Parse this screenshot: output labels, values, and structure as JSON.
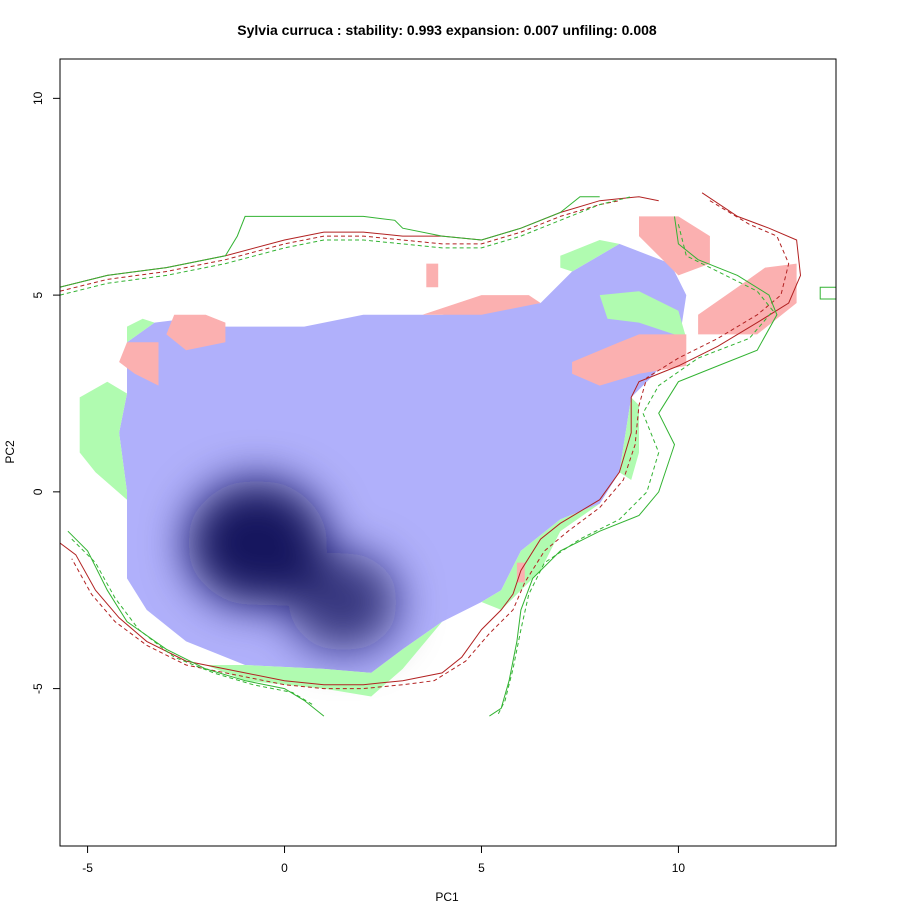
{
  "chart_data": {
    "type": "heatmap",
    "title": "Sylvia curruca : stability: 0.993 expansion: 0.007 unfiling: 0.008",
    "xlabel": "PC1",
    "ylabel": "PC2",
    "xlim": [
      -5.7,
      14.0
    ],
    "ylim": [
      -9.0,
      11.0
    ],
    "x_ticks": [
      -5,
      0,
      5,
      10
    ],
    "y_ticks": [
      -5,
      0,
      5,
      10
    ],
    "stability": 0.993,
    "expansion": 0.007,
    "unfilling": 0.008,
    "layers": [
      {
        "category": "stability",
        "color": "#b0b0fb"
      },
      {
        "category": "unfilling",
        "color": "#b0fbb0"
      },
      {
        "category": "expansion",
        "color": "#fbb0b0"
      }
    ],
    "density_peaks": [
      {
        "pc1": -0.7,
        "pc2": -1.3,
        "weight": 1.0
      },
      {
        "pc1": 1.5,
        "pc2": -2.8,
        "weight": 0.5
      }
    ],
    "stability_polygon": [
      [
        -4.0,
        2.5
      ],
      [
        -4.0,
        3.8
      ],
      [
        -3.3,
        4.3
      ],
      [
        -2.5,
        4.4
      ],
      [
        -1.5,
        4.2
      ],
      [
        0.5,
        4.2
      ],
      [
        2.0,
        4.5
      ],
      [
        4.0,
        4.5
      ],
      [
        6.5,
        4.8
      ],
      [
        7.3,
        5.6
      ],
      [
        8.5,
        6.3
      ],
      [
        9.8,
        5.8
      ],
      [
        10.2,
        5.0
      ],
      [
        10.0,
        3.7
      ],
      [
        9.3,
        2.9
      ],
      [
        8.8,
        2.4
      ],
      [
        8.5,
        0.5
      ],
      [
        8.0,
        -0.3
      ],
      [
        7.0,
        -0.7
      ],
      [
        6.0,
        -1.5
      ],
      [
        5.5,
        -2.5
      ],
      [
        5.0,
        -2.8
      ],
      [
        4.0,
        -3.3
      ],
      [
        3.0,
        -4.0
      ],
      [
        2.2,
        -4.6
      ],
      [
        1.0,
        -4.5
      ],
      [
        -1.0,
        -4.4
      ],
      [
        -2.5,
        -3.8
      ],
      [
        -3.5,
        -3.0
      ],
      [
        -4.0,
        -2.2
      ],
      [
        -4.0,
        0.0
      ],
      [
        -4.2,
        1.5
      ],
      [
        -4.0,
        2.5
      ]
    ],
    "expansion_polygons": [
      [
        [
          -4.2,
          3.3
        ],
        [
          -3.8,
          3.0
        ],
        [
          -3.2,
          2.7
        ],
        [
          -3.2,
          3.8
        ],
        [
          -4.0,
          3.8
        ]
      ],
      [
        [
          -2.8,
          4.5
        ],
        [
          -2.0,
          4.5
        ],
        [
          -1.5,
          4.3
        ],
        [
          -1.5,
          3.8
        ],
        [
          -2.5,
          3.6
        ],
        [
          -3.0,
          4.0
        ]
      ],
      [
        [
          3.6,
          5.8
        ],
        [
          3.9,
          5.8
        ],
        [
          3.9,
          5.2
        ],
        [
          3.6,
          5.2
        ]
      ],
      [
        [
          3.5,
          4.5
        ],
        [
          5.0,
          5.0
        ],
        [
          6.2,
          5.0
        ],
        [
          6.5,
          4.8
        ],
        [
          5.0,
          4.5
        ]
      ],
      [
        [
          7.3,
          3.3
        ],
        [
          8.5,
          3.8
        ],
        [
          9.0,
          4.0
        ],
        [
          10.2,
          4.0
        ],
        [
          10.2,
          3.2
        ],
        [
          9.0,
          3.0
        ],
        [
          8.0,
          2.7
        ],
        [
          7.3,
          3.0
        ]
      ],
      [
        [
          9.0,
          7.0
        ],
        [
          10.0,
          7.0
        ],
        [
          10.8,
          6.5
        ],
        [
          10.8,
          5.8
        ],
        [
          10.0,
          5.5
        ],
        [
          9.5,
          6.0
        ],
        [
          9.0,
          6.5
        ]
      ],
      [
        [
          10.5,
          4.5
        ],
        [
          11.5,
          5.2
        ],
        [
          12.2,
          5.7
        ],
        [
          13.0,
          5.8
        ],
        [
          13.0,
          4.8
        ],
        [
          12.0,
          4.0
        ],
        [
          10.5,
          4.0
        ]
      ],
      [
        [
          5.9,
          -2.3
        ],
        [
          6.1,
          -2.3
        ],
        [
          6.1,
          -1.8
        ],
        [
          5.9,
          -1.8
        ]
      ]
    ],
    "unfilling_polygons": [
      [
        [
          -5.2,
          2.4
        ],
        [
          -4.5,
          2.8
        ],
        [
          -4.0,
          2.5
        ],
        [
          -4.2,
          1.5
        ],
        [
          -4.0,
          0.0
        ],
        [
          -4.0,
          -0.2
        ],
        [
          -4.8,
          0.5
        ],
        [
          -5.2,
          1.0
        ]
      ],
      [
        [
          -4.0,
          4.2
        ],
        [
          -3.6,
          4.4
        ],
        [
          -3.3,
          4.3
        ],
        [
          -4.0,
          3.8
        ]
      ],
      [
        [
          -2.0,
          -4.4
        ],
        [
          -1.0,
          -4.8
        ],
        [
          1.0,
          -5.0
        ],
        [
          2.2,
          -5.2
        ],
        [
          3.0,
          -4.5
        ],
        [
          4.0,
          -3.3
        ],
        [
          3.0,
          -4.0
        ],
        [
          2.2,
          -4.6
        ],
        [
          1.0,
          -4.5
        ],
        [
          -1.0,
          -4.4
        ]
      ],
      [
        [
          7.0,
          6.0
        ],
        [
          8.0,
          6.4
        ],
        [
          8.5,
          6.3
        ],
        [
          7.3,
          5.6
        ],
        [
          7.0,
          5.7
        ]
      ],
      [
        [
          8.0,
          5.0
        ],
        [
          9.0,
          5.1
        ],
        [
          10.0,
          4.6
        ],
        [
          10.2,
          3.9
        ],
        [
          9.0,
          4.3
        ],
        [
          8.2,
          4.4
        ]
      ],
      [
        [
          8.7,
          2.5
        ],
        [
          9.0,
          2.2
        ],
        [
          9.0,
          1.0
        ],
        [
          8.8,
          0.3
        ],
        [
          8.5,
          0.5
        ],
        [
          8.8,
          2.4
        ]
      ],
      [
        [
          5.0,
          -2.8
        ],
        [
          5.5,
          -3.0
        ],
        [
          6.5,
          -2.0
        ],
        [
          7.0,
          -1.0
        ],
        [
          8.0,
          -0.3
        ],
        [
          7.0,
          -0.7
        ],
        [
          6.0,
          -1.5
        ],
        [
          5.5,
          -2.5
        ]
      ]
    ],
    "contours": [
      {
        "color": "#b22222",
        "dash": "solid",
        "points": [
          [
            -5.7,
            5.2
          ],
          [
            -4.5,
            5.5
          ],
          [
            -3.0,
            5.7
          ],
          [
            -1.5,
            6.0
          ],
          [
            0.0,
            6.4
          ],
          [
            1.0,
            6.6
          ],
          [
            2.0,
            6.6
          ],
          [
            3.0,
            6.5
          ],
          [
            4.0,
            6.5
          ],
          [
            5.0,
            6.4
          ],
          [
            6.0,
            6.7
          ],
          [
            7.0,
            7.1
          ],
          [
            8.0,
            7.4
          ],
          [
            9.0,
            7.5
          ],
          [
            9.5,
            7.4
          ]
        ]
      },
      {
        "color": "#b22222",
        "dash": "dashed",
        "points": [
          [
            -5.7,
            5.1
          ],
          [
            -4.5,
            5.4
          ],
          [
            -3.0,
            5.6
          ],
          [
            -1.5,
            5.9
          ],
          [
            0.0,
            6.3
          ],
          [
            1.0,
            6.5
          ],
          [
            2.0,
            6.5
          ],
          [
            3.0,
            6.4
          ],
          [
            4.0,
            6.3
          ],
          [
            5.0,
            6.3
          ],
          [
            6.0,
            6.6
          ],
          [
            7.0,
            7.0
          ],
          [
            8.0,
            7.3
          ],
          [
            8.5,
            7.4
          ]
        ]
      },
      {
        "color": "#32b332",
        "dash": "solid",
        "points": [
          [
            -5.7,
            5.2
          ],
          [
            -4.5,
            5.5
          ],
          [
            -3.0,
            5.7
          ],
          [
            -1.5,
            6.0
          ],
          [
            -1.2,
            6.5
          ],
          [
            -1.0,
            7.0
          ],
          [
            0.0,
            7.0
          ],
          [
            2.0,
            7.0
          ],
          [
            2.8,
            6.9
          ],
          [
            3.0,
            6.7
          ],
          [
            4.0,
            6.5
          ],
          [
            5.0,
            6.4
          ],
          [
            6.0,
            6.7
          ],
          [
            7.0,
            7.1
          ],
          [
            7.5,
            7.5
          ],
          [
            8.0,
            7.5
          ]
        ]
      },
      {
        "color": "#32b332",
        "dash": "dashed",
        "points": [
          [
            -5.7,
            5.0
          ],
          [
            -4.5,
            5.3
          ],
          [
            -3.0,
            5.5
          ],
          [
            -1.5,
            5.8
          ],
          [
            0.0,
            6.2
          ],
          [
            1.0,
            6.4
          ],
          [
            2.0,
            6.4
          ],
          [
            3.0,
            6.3
          ],
          [
            4.0,
            6.2
          ],
          [
            5.0,
            6.2
          ],
          [
            6.0,
            6.5
          ],
          [
            7.0,
            6.9
          ],
          [
            8.0,
            7.3
          ],
          [
            8.8,
            7.5
          ]
        ]
      },
      {
        "color": "#b22222",
        "dash": "solid",
        "points": [
          [
            10.6,
            7.6
          ],
          [
            11.5,
            7.0
          ],
          [
            12.3,
            6.7
          ],
          [
            13.0,
            6.4
          ],
          [
            13.1,
            5.5
          ],
          [
            12.8,
            4.8
          ],
          [
            12.0,
            4.3
          ],
          [
            11.0,
            3.7
          ],
          [
            10.0,
            3.2
          ],
          [
            9.0,
            2.8
          ],
          [
            8.8,
            2.4
          ],
          [
            8.8,
            1.5
          ],
          [
            8.5,
            0.5
          ],
          [
            8.0,
            -0.2
          ],
          [
            7.0,
            -0.8
          ],
          [
            6.5,
            -1.2
          ],
          [
            6.0,
            -2.0
          ],
          [
            5.8,
            -2.6
          ],
          [
            5.5,
            -3.0
          ],
          [
            5.0,
            -3.5
          ],
          [
            4.5,
            -4.2
          ],
          [
            4.0,
            -4.6
          ],
          [
            3.0,
            -4.8
          ],
          [
            2.0,
            -4.9
          ],
          [
            1.0,
            -4.9
          ],
          [
            0.0,
            -4.8
          ],
          [
            -1.0,
            -4.6
          ],
          [
            -2.5,
            -4.3
          ],
          [
            -3.5,
            -3.8
          ],
          [
            -4.2,
            -3.2
          ],
          [
            -4.8,
            -2.5
          ],
          [
            -5.3,
            -1.6
          ],
          [
            -5.7,
            -1.3
          ]
        ]
      },
      {
        "color": "#b22222",
        "dash": "dashed",
        "points": [
          [
            10.8,
            7.4
          ],
          [
            11.8,
            6.8
          ],
          [
            12.5,
            6.5
          ],
          [
            12.8,
            5.8
          ],
          [
            12.6,
            5.0
          ],
          [
            12.0,
            4.5
          ],
          [
            11.0,
            3.9
          ],
          [
            10.0,
            3.4
          ],
          [
            9.2,
            2.9
          ],
          [
            9.0,
            2.2
          ],
          [
            8.9,
            1.2
          ],
          [
            8.6,
            0.3
          ],
          [
            8.0,
            -0.4
          ],
          [
            7.2,
            -1.0
          ],
          [
            6.6,
            -1.5
          ],
          [
            6.1,
            -2.3
          ],
          [
            5.8,
            -3.0
          ],
          [
            5.2,
            -3.6
          ],
          [
            4.6,
            -4.3
          ],
          [
            3.8,
            -4.8
          ],
          [
            3.0,
            -4.9
          ],
          [
            2.0,
            -5.0
          ],
          [
            1.0,
            -5.0
          ],
          [
            0.0,
            -4.9
          ],
          [
            -1.0,
            -4.7
          ],
          [
            -2.5,
            -4.4
          ],
          [
            -3.5,
            -3.9
          ],
          [
            -4.3,
            -3.3
          ],
          [
            -4.9,
            -2.6
          ],
          [
            -5.4,
            -1.7
          ]
        ]
      },
      {
        "color": "#32b332",
        "dash": "solid",
        "points": [
          [
            9.9,
            7.0
          ],
          [
            10.0,
            6.3
          ],
          [
            10.5,
            5.9
          ],
          [
            11.5,
            5.5
          ],
          [
            12.3,
            5.0
          ],
          [
            12.5,
            4.5
          ],
          [
            12.0,
            3.6
          ],
          [
            11.0,
            3.2
          ],
          [
            10.0,
            2.8
          ],
          [
            9.5,
            2.0
          ],
          [
            9.9,
            1.2
          ],
          [
            9.5,
            0.0
          ],
          [
            9.0,
            -0.6
          ],
          [
            8.0,
            -1.0
          ],
          [
            7.0,
            -1.5
          ],
          [
            6.3,
            -2.2
          ],
          [
            6.0,
            -3.0
          ],
          [
            5.9,
            -3.8
          ],
          [
            5.7,
            -4.8
          ],
          [
            5.5,
            -5.5
          ],
          [
            5.2,
            -5.7
          ]
        ]
      },
      {
        "color": "#32b332",
        "dash": "dashed",
        "points": [
          [
            10.0,
            6.8
          ],
          [
            10.2,
            6.0
          ],
          [
            11.0,
            5.6
          ],
          [
            12.0,
            5.1
          ],
          [
            12.4,
            4.6
          ],
          [
            11.8,
            3.9
          ],
          [
            10.5,
            3.4
          ],
          [
            9.5,
            2.7
          ],
          [
            9.1,
            2.0
          ],
          [
            9.5,
            1.0
          ],
          [
            9.2,
            0.0
          ],
          [
            8.5,
            -0.7
          ],
          [
            7.5,
            -1.2
          ],
          [
            6.6,
            -1.8
          ],
          [
            6.2,
            -2.6
          ],
          [
            6.0,
            -3.5
          ],
          [
            5.8,
            -4.5
          ],
          [
            5.6,
            -5.3
          ],
          [
            5.4,
            -5.7
          ]
        ]
      },
      {
        "color": "#32b332",
        "dash": "solid",
        "points": [
          [
            -5.5,
            -1.0
          ],
          [
            -5.0,
            -1.5
          ],
          [
            -4.5,
            -2.5
          ],
          [
            -4.0,
            -3.3
          ],
          [
            -3.0,
            -4.0
          ],
          [
            -2.0,
            -4.5
          ],
          [
            -1.0,
            -4.8
          ],
          [
            0.0,
            -5.0
          ],
          [
            0.5,
            -5.3
          ],
          [
            1.0,
            -5.7
          ]
        ]
      },
      {
        "color": "#32b332",
        "dash": "dashed",
        "points": [
          [
            -5.4,
            -1.2
          ],
          [
            -4.8,
            -1.8
          ],
          [
            -4.3,
            -2.7
          ],
          [
            -3.7,
            -3.5
          ],
          [
            -2.8,
            -4.2
          ],
          [
            -1.8,
            -4.6
          ],
          [
            -0.8,
            -4.9
          ],
          [
            0.2,
            -5.1
          ],
          [
            0.7,
            -5.4
          ]
        ]
      },
      {
        "color": "#32b332",
        "dash": "solid",
        "points": [
          [
            14.0,
            5.2
          ],
          [
            13.6,
            5.2
          ],
          [
            13.6,
            4.9
          ],
          [
            14.0,
            4.9
          ]
        ]
      }
    ]
  }
}
